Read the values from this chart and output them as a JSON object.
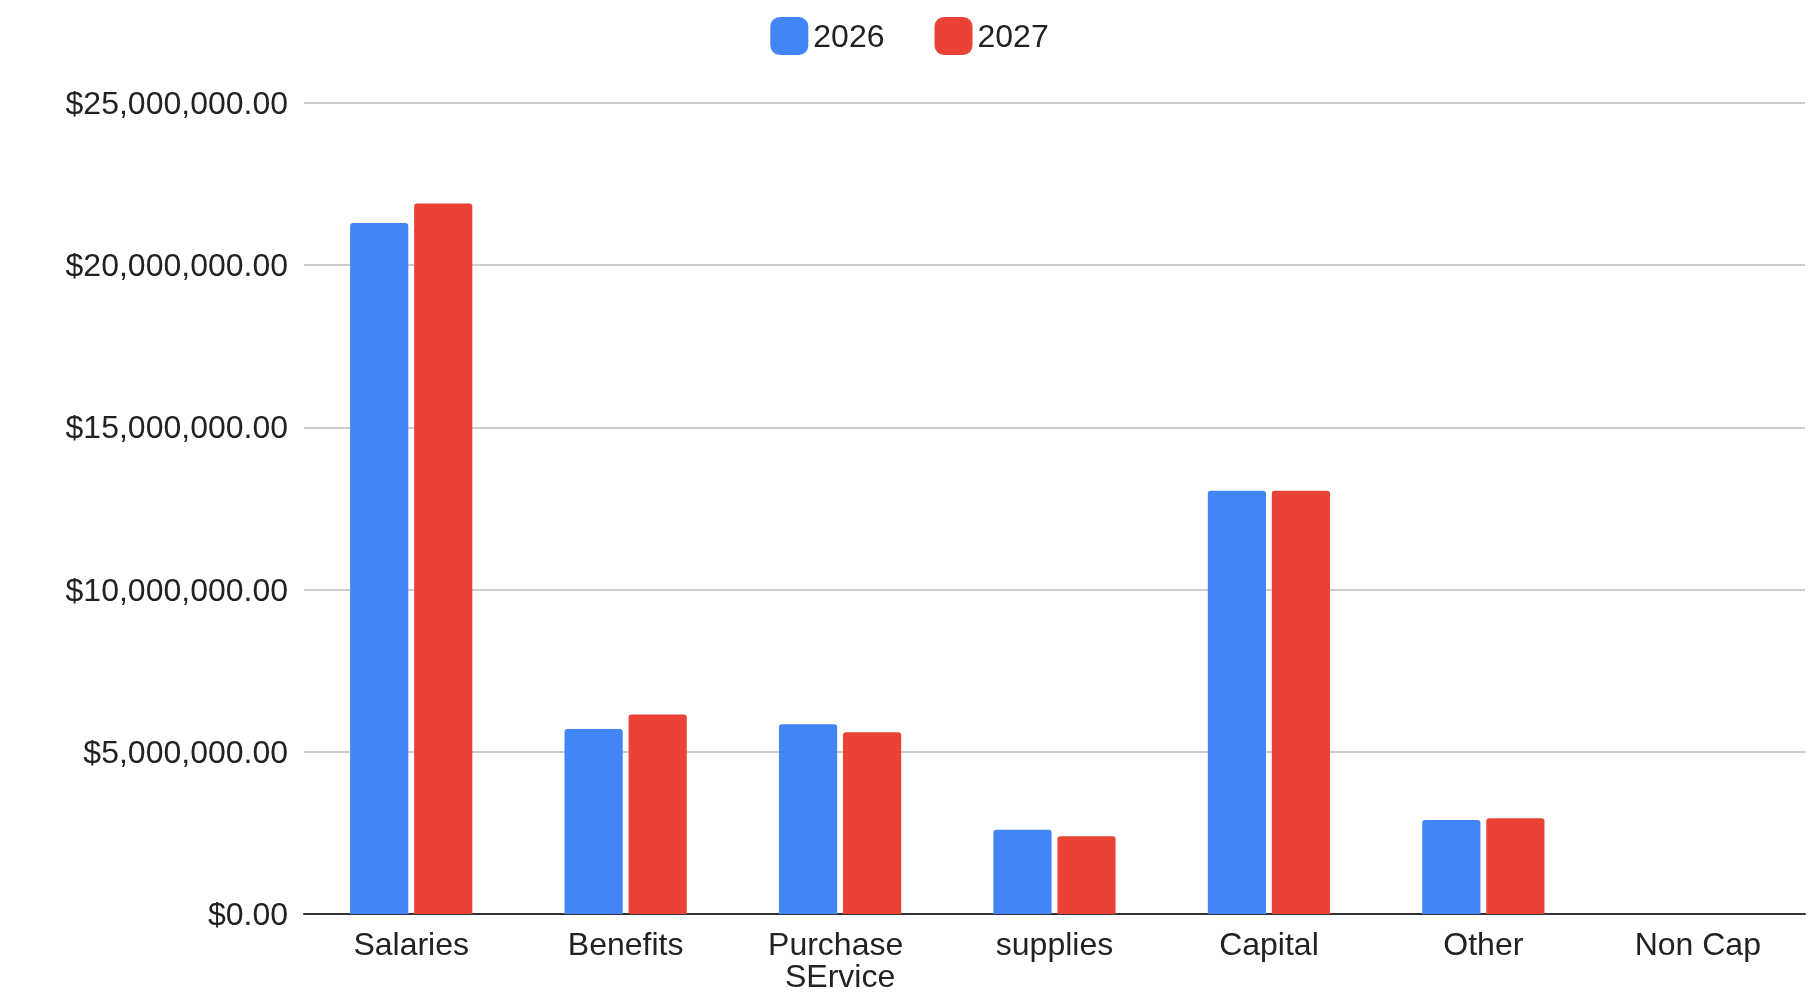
{
  "chart_data": {
    "type": "bar",
    "categories": [
      "Salaries",
      "Benefits",
      "Purchase SErvice",
      "supplies",
      "Capital",
      "Other",
      "Non Cap"
    ],
    "series": [
      {
        "name": "2026",
        "color": "#4285f4",
        "values": [
          21300000,
          5700000,
          5850000,
          2600000,
          13050000,
          2900000,
          0
        ]
      },
      {
        "name": "2027",
        "color": "#ea4335",
        "values": [
          21900000,
          6150000,
          5600000,
          2400000,
          13050000,
          2950000,
          0
        ]
      }
    ],
    "ylim": [
      0,
      25000000
    ],
    "yticks": [
      {
        "value": 0,
        "label": "$0.00"
      },
      {
        "value": 5000000,
        "label": "$5,000,000.00"
      },
      {
        "value": 10000000,
        "label": "$10,000,000.00"
      },
      {
        "value": 15000000,
        "label": "$15,000,000.00"
      },
      {
        "value": 20000000,
        "label": "$20,000,000.00"
      },
      {
        "value": 25000000,
        "label": "$25,000,000.00"
      }
    ],
    "grid": "y",
    "legend": "top"
  }
}
